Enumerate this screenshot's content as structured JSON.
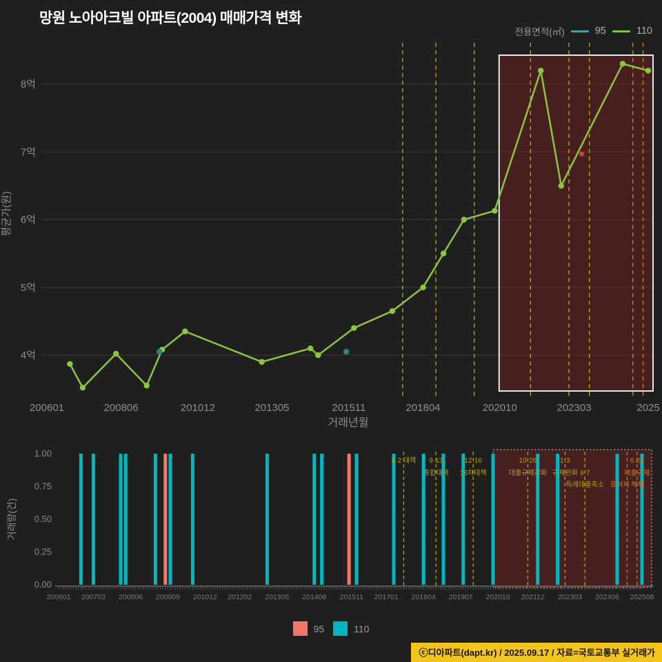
{
  "title": "망원 노아아크빌 아파트(2004) 매매가격 변화",
  "legend_top": {
    "label": "전용면적(㎡)",
    "items": [
      {
        "name": "95",
        "color": "#4a9f9c"
      },
      {
        "name": "110",
        "color": "#7dc242"
      }
    ]
  },
  "legend_bottom": {
    "items": [
      {
        "name": "95",
        "color": "#F4766B"
      },
      {
        "name": "110",
        "color": "#00B7BD"
      }
    ]
  },
  "footer": {
    "text": "ⓒ디아파트(dapt.kr) / 2025.09.17 / 자료=국토교통부 실거래가",
    "bg": "#f2c41d"
  },
  "policies": [
    {
      "m": "201708",
      "color": "#b3a01b",
      "labels": [
        {
          "t": "8·2 대책",
          "row": 0
        }
      ]
    },
    {
      "m": "201809",
      "color": "#b3a01b",
      "labels": [
        {
          "t": "9·13",
          "row": 0
        },
        {
          "t": "종합대책",
          "row": 1
        }
      ]
    },
    {
      "m": "201912",
      "color": "#b3a01b",
      "labels": [
        {
          "t": "12·16",
          "row": 0
        },
        {
          "t": "18차대책",
          "row": 1
        }
      ]
    },
    {
      "m": "202110",
      "color": "#b3a01b",
      "labels": [
        {
          "t": "10·26",
          "row": 0
        },
        {
          "t": "대출규제강화",
          "row": 1
        }
      ]
    },
    {
      "m": "202301",
      "color": "#b3a01b",
      "labels": [
        {
          "t": "1·3",
          "row": 0
        },
        {
          "t": "규제완화",
          "row": 1
        }
      ]
    },
    {
      "m": "202309",
      "color": "#b3a01b",
      "labels": [
        {
          "t": "9·7",
          "row": 1
        },
        {
          "t": "특례대출축소",
          "row": 2
        }
      ]
    },
    {
      "m": "202502",
      "color": "#c97b1f",
      "labels": [
        {
          "t": "토허제 해제",
          "row": 2
        }
      ]
    },
    {
      "m": "202506",
      "color": "#c97b1f",
      "labels": [
        {
          "t": "6·27",
          "row": 0
        },
        {
          "t": "대출규제",
          "row": 1
        }
      ]
    }
  ],
  "chart_data": [
    {
      "type": "line",
      "title": "망원 노아아크빌 아파트(2004) 매매가격 변화",
      "xlabel": "거래년월",
      "ylabel": "평균가(원)",
      "x_range": [
        "200601",
        "202508"
      ],
      "y_unit": "억",
      "ylim": [
        3.3,
        8.6
      ],
      "grid": true,
      "y_ticks": [
        {
          "v": 4,
          "label": "4억"
        },
        {
          "v": 5,
          "label": "5억"
        },
        {
          "v": 6,
          "label": "6억"
        },
        {
          "v": 7,
          "label": "7억"
        },
        {
          "v": 8,
          "label": "8억"
        }
      ],
      "x_ticks": [
        {
          "m": "200601",
          "label": "200601"
        },
        {
          "m": "200806",
          "label": "200806"
        },
        {
          "m": "201012",
          "label": "201012"
        },
        {
          "m": "201305",
          "label": "201305"
        },
        {
          "m": "201511",
          "label": "201511"
        },
        {
          "m": "201804",
          "label": "201804"
        },
        {
          "m": "202010",
          "label": "202010"
        },
        {
          "m": "202303",
          "label": "202303"
        },
        {
          "m": "202508",
          "label": "2025"
        }
      ],
      "series": [
        {
          "name": "110",
          "color": "#8CC63F",
          "draw": "line+marker",
          "points": [
            [
              "200610",
              3.87
            ],
            [
              "200703",
              3.52
            ],
            [
              "200804",
              4.02
            ],
            [
              "200904",
              3.55
            ],
            [
              "200910",
              4.08
            ],
            [
              "201007",
              4.35
            ],
            [
              "201301",
              3.9
            ],
            [
              "201408",
              4.1
            ],
            [
              "201411",
              4.0
            ],
            [
              "201601",
              4.4
            ],
            [
              "201704",
              4.65
            ],
            [
              "201804",
              5.0
            ],
            [
              "201812",
              5.5
            ],
            [
              "201908",
              6.0
            ],
            [
              "202008",
              6.13
            ],
            [
              "202202",
              8.2
            ],
            [
              "202210",
              6.5
            ],
            [
              "202410",
              8.3
            ],
            [
              "202508",
              8.2
            ]
          ]
        },
        {
          "name": "95",
          "color": "#35807D",
          "draw": "marker",
          "points": [
            [
              "200909",
              4.05
            ],
            [
              "201510",
              4.05
            ]
          ]
        }
      ],
      "marker": {
        "m": "202306",
        "v": 6.97,
        "color": "#d94f3d",
        "shape": "asterisk"
      },
      "highlight": {
        "from": "202010",
        "to": "202508",
        "fill": "rgba(166,34,34,0.30)",
        "border": "#e8e8e8"
      }
    },
    {
      "type": "bar",
      "xlabel": "",
      "ylabel": "거래량(건)",
      "ylim": [
        0,
        1
      ],
      "y_ticks": [
        {
          "v": 1,
          "label": "1.00"
        },
        {
          "v": 0.75,
          "label": "0.75"
        },
        {
          "v": 0.5,
          "label": "0.50"
        },
        {
          "v": 0.25,
          "label": "0.25"
        },
        {
          "v": 0,
          "label": "0.00"
        }
      ],
      "x_ticks": [
        "200601",
        "200703",
        "200806",
        "200909",
        "201012",
        "201202",
        "201305",
        "201408",
        "201511",
        "201701",
        "201804",
        "201907",
        "202010",
        "202112",
        "202303",
        "202406",
        "202508"
      ],
      "series_colors": {
        "95": "#F4766B",
        "110": "#00B7BD"
      },
      "bars": [
        {
          "m": "200610",
          "s": "110",
          "v": 1
        },
        {
          "m": "200703",
          "s": "110",
          "v": 1
        },
        {
          "m": "200802",
          "s": "110",
          "v": 1
        },
        {
          "m": "200804",
          "s": "110",
          "v": 1
        },
        {
          "m": "200904",
          "s": "110",
          "v": 1
        },
        {
          "m": "200908",
          "s": "95",
          "v": 1
        },
        {
          "m": "200910",
          "s": "110",
          "v": 1
        },
        {
          "m": "201007",
          "s": "110",
          "v": 1
        },
        {
          "m": "201301",
          "s": "110",
          "v": 1
        },
        {
          "m": "201408",
          "s": "110",
          "v": 1
        },
        {
          "m": "201411",
          "s": "110",
          "v": 1
        },
        {
          "m": "201510",
          "s": "95",
          "v": 1
        },
        {
          "m": "201601",
          "s": "110",
          "v": 1
        },
        {
          "m": "201704",
          "s": "110",
          "v": 1
        },
        {
          "m": "201804",
          "s": "110",
          "v": 1
        },
        {
          "m": "201812",
          "s": "110",
          "v": 1
        },
        {
          "m": "201908",
          "s": "110",
          "v": 1
        },
        {
          "m": "202008",
          "s": "110",
          "v": 1
        },
        {
          "m": "202202",
          "s": "110",
          "v": 1
        },
        {
          "m": "202210",
          "s": "110",
          "v": 1
        },
        {
          "m": "202410",
          "s": "110",
          "v": 1
        },
        {
          "m": "202508",
          "s": "110",
          "v": 1
        }
      ],
      "highlight": {
        "from": "202010",
        "to": "202508",
        "fill": "rgba(166,34,34,0.30)",
        "border": "#9a9a9a"
      }
    }
  ]
}
